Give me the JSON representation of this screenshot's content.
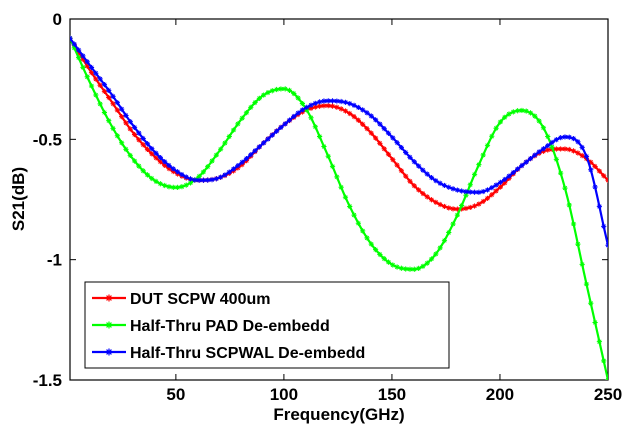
{
  "chart_data": {
    "type": "line",
    "title": "",
    "xlabel": "Frequency(GHz)",
    "ylabel": "S21(dB)",
    "xlim": [
      1,
      250
    ],
    "ylim": [
      -1.5,
      0
    ],
    "xticks": [
      {
        "value": 50,
        "label": "50"
      },
      {
        "value": 100,
        "label": "100"
      },
      {
        "value": 150,
        "label": "150"
      },
      {
        "value": 200,
        "label": "200"
      },
      {
        "value": 250,
        "label": "250"
      }
    ],
    "yticks": [
      {
        "value": 0,
        "label": "0"
      },
      {
        "value": -0.5,
        "label": "-0.5"
      },
      {
        "value": -1,
        "label": "-1"
      },
      {
        "value": -1.5,
        "label": "-1.5"
      }
    ],
    "grid": false,
    "legend_position": "bottom-left",
    "series": [
      {
        "name": "DUT SCPW 400um",
        "color": "#ff0000",
        "x": [
          1,
          10,
          20,
          30,
          40,
          50,
          60,
          70,
          80,
          90,
          100,
          110,
          120,
          130,
          140,
          150,
          160,
          170,
          180,
          190,
          200,
          210,
          220,
          230,
          240,
          250
        ],
        "y": [
          -0.08,
          -0.21,
          -0.34,
          -0.47,
          -0.57,
          -0.64,
          -0.67,
          -0.66,
          -0.61,
          -0.52,
          -0.44,
          -0.38,
          -0.36,
          -0.39,
          -0.47,
          -0.58,
          -0.69,
          -0.76,
          -0.79,
          -0.77,
          -0.7,
          -0.61,
          -0.55,
          -0.54,
          -0.58,
          -0.67
        ]
      },
      {
        "name": "Half-Thru PAD De-embedd",
        "color": "#00ff00",
        "x": [
          1,
          10,
          20,
          30,
          40,
          50,
          60,
          70,
          80,
          90,
          100,
          110,
          120,
          130,
          140,
          150,
          160,
          170,
          180,
          190,
          200,
          210,
          220,
          230,
          240,
          250
        ],
        "y": [
          -0.08,
          -0.26,
          -0.44,
          -0.58,
          -0.67,
          -0.7,
          -0.66,
          -0.55,
          -0.42,
          -0.32,
          -0.29,
          -0.37,
          -0.56,
          -0.77,
          -0.93,
          -1.02,
          -1.04,
          -0.98,
          -0.82,
          -0.61,
          -0.43,
          -0.38,
          -0.45,
          -0.7,
          -1.1,
          -1.5
        ]
      },
      {
        "name": "Half-Thru SCPWAL De-embedd",
        "color": "#0000ff",
        "x": [
          1,
          10,
          20,
          30,
          40,
          50,
          60,
          70,
          80,
          90,
          100,
          110,
          120,
          130,
          140,
          150,
          160,
          170,
          180,
          190,
          200,
          210,
          220,
          230,
          240,
          250
        ],
        "y": [
          -0.08,
          -0.19,
          -0.31,
          -0.44,
          -0.55,
          -0.63,
          -0.67,
          -0.66,
          -0.6,
          -0.52,
          -0.44,
          -0.37,
          -0.34,
          -0.35,
          -0.4,
          -0.49,
          -0.59,
          -0.67,
          -0.71,
          -0.72,
          -0.68,
          -0.61,
          -0.54,
          -0.49,
          -0.57,
          -0.94
        ]
      }
    ]
  }
}
